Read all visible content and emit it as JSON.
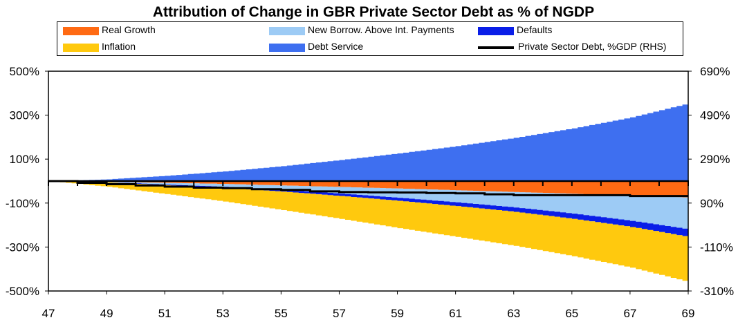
{
  "chart_data": {
    "type": "area",
    "title": "Attribution of Change in GBR Private Sector Debt as % of NGDP",
    "x_start": 47,
    "x_end": 69,
    "x_ticks": [
      "47",
      "49",
      "51",
      "53",
      "55",
      "57",
      "59",
      "61",
      "63",
      "65",
      "67",
      "69"
    ],
    "ylim_left": [
      -500,
      500
    ],
    "yticks_left": [
      "500%",
      "300%",
      "100%",
      "-100%",
      "-300%",
      "-500%"
    ],
    "ylim_right": [
      -310,
      690
    ],
    "yticks_right": [
      "690%",
      "490%",
      "290%",
      "90%",
      "-110%",
      "-310%"
    ],
    "legend": [
      {
        "label": "Real Growth",
        "color": "#ff6a13",
        "kind": "area"
      },
      {
        "label": "New Borrow. Above Int. Payments",
        "color": "#9dcbf5",
        "kind": "area"
      },
      {
        "label": "Defaults",
        "color": "#0a1ee8",
        "kind": "area"
      },
      {
        "label": "Inflation",
        "color": "#ffc90e",
        "kind": "area"
      },
      {
        "label": "Debt Service",
        "color": "#3e6ff0",
        "kind": "area"
      },
      {
        "label": "Private Sector Debt, %GDP (RHS)",
        "color": "#000000",
        "kind": "line"
      }
    ],
    "series": [
      {
        "name": "Debt Service",
        "color": "#3e6ff0",
        "sign": "positive",
        "x": [
          47,
          49,
          51,
          53,
          55,
          57,
          59,
          61,
          63,
          65,
          67,
          69
        ],
        "values": [
          0,
          8,
          24,
          44,
          68,
          96,
          126,
          159,
          197,
          240,
          290,
          355
        ]
      },
      {
        "name": "Real Growth",
        "color": "#ff6a13",
        "sign": "negative",
        "x": [
          47,
          49,
          51,
          53,
          55,
          57,
          59,
          61,
          63,
          65,
          67,
          69
        ],
        "values": [
          0,
          -3,
          -8,
          -13,
          -20,
          -27,
          -34,
          -42,
          -50,
          -58,
          -66,
          -75
        ]
      },
      {
        "name": "New Borrow. Above Int. Payments",
        "color": "#9dcbf5",
        "sign": "negative",
        "x": [
          47,
          49,
          51,
          53,
          55,
          57,
          59,
          61,
          63,
          65,
          67,
          69
        ],
        "values": [
          0,
          -2,
          -8,
          -13,
          -20,
          -30,
          -42,
          -55,
          -70,
          -90,
          -115,
          -145
        ]
      },
      {
        "name": "Defaults",
        "color": "#0a1ee8",
        "sign": "negative",
        "x": [
          47,
          49,
          51,
          53,
          55,
          57,
          59,
          61,
          63,
          65,
          67,
          69
        ],
        "values": [
          0,
          -1,
          -3,
          -5,
          -8,
          -11,
          -14,
          -17,
          -20,
          -24,
          -28,
          -35
        ]
      },
      {
        "name": "Inflation",
        "color": "#ffc90e",
        "sign": "negative",
        "x": [
          47,
          49,
          51,
          53,
          55,
          57,
          59,
          61,
          63,
          65,
          67,
          69
        ],
        "values": [
          0,
          -20,
          -40,
          -62,
          -84,
          -104,
          -124,
          -140,
          -155,
          -170,
          -185,
          -205
        ]
      },
      {
        "name": "Private Sector Debt, %GDP (RHS)",
        "color": "#000000",
        "axis": "right",
        "x": [
          47,
          48,
          49,
          50,
          51,
          52,
          53,
          54,
          55,
          56,
          57,
          58,
          59,
          60,
          61,
          62,
          63,
          64,
          65,
          66,
          67,
          68,
          69
        ],
        "values": [
          190,
          182,
          176,
          170,
          165,
          160,
          158,
          153,
          150,
          143,
          140,
          139,
          138,
          136,
          134,
          130,
          126,
          126,
          126,
          126,
          122,
          122,
          122
        ]
      }
    ]
  }
}
